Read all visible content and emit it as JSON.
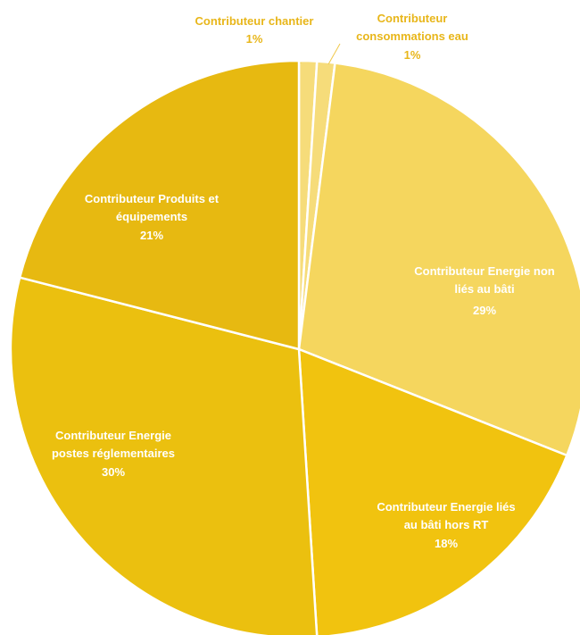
{
  "chart_data": {
    "type": "pie",
    "title": "",
    "start": "top",
    "direction": "clockwise",
    "slices": [
      {
        "label": "Contributeur chantier",
        "value": 1,
        "value_label": "1%",
        "color": "#f6dc7a",
        "label_color": "#e8b61a"
      },
      {
        "label": "Contributeur consommations eau",
        "value": 1,
        "value_label": "1%",
        "color": "#f6dc7a",
        "label_color": "#e8b61a"
      },
      {
        "label": "Contributeur Energie non liés au bâti",
        "value": 29,
        "value_label": "29%",
        "color": "#f5d65e",
        "label_color": "#ffffff"
      },
      {
        "label": "Contributeur Energie liés au bâti  hors RT",
        "value": 18,
        "value_label": "18%",
        "color": "#f1c30f",
        "label_color": "#ffffff"
      },
      {
        "label": "Contributeur Energie postes réglementaires",
        "value": 30,
        "value_label": "30%",
        "color": "#ebc00f",
        "label_color": "#ffffff"
      },
      {
        "label": "Contributeur Produits et équipements",
        "value": 21,
        "value_label": "21%",
        "color": "#e7b911",
        "label_color": "#ffffff"
      }
    ]
  }
}
